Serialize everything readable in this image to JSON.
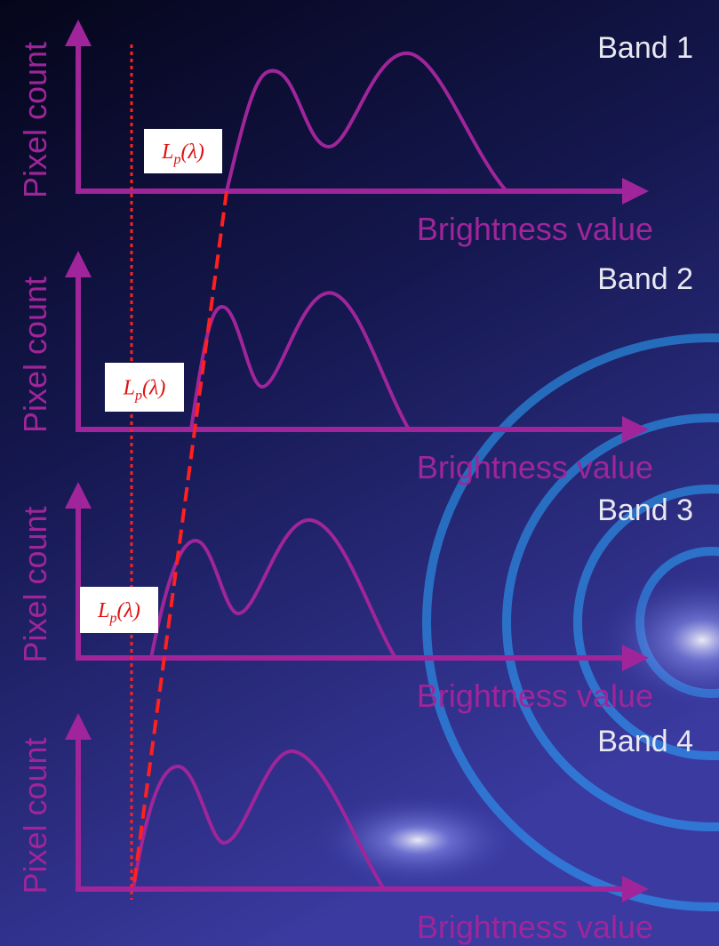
{
  "panels": [
    {
      "band": "Band 1",
      "y_label": "Pixel count",
      "x_label": "Brightness value",
      "marker": {
        "base": "L",
        "sub": "p",
        "arg": "(λ)"
      }
    },
    {
      "band": "Band 2",
      "y_label": "Pixel count",
      "x_label": "Brightness value",
      "marker": {
        "base": "L",
        "sub": "p",
        "arg": "(λ)"
      }
    },
    {
      "band": "Band 3",
      "y_label": "Pixel count",
      "x_label": "Brightness value",
      "marker": {
        "base": "L",
        "sub": "p",
        "arg": "(λ)"
      }
    },
    {
      "band": "Band 4",
      "y_label": "Pixel count",
      "x_label": "Brightness value"
    }
  ]
}
